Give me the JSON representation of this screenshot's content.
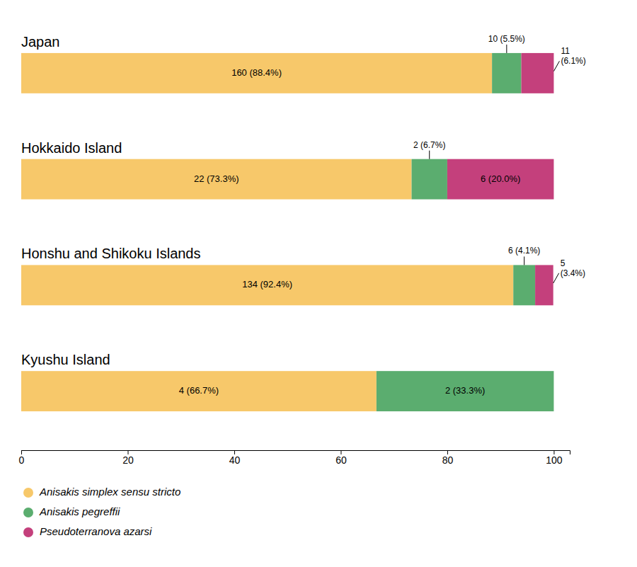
{
  "chart_data": {
    "type": "bar",
    "orientation": "horizontal",
    "stacked": true,
    "data_labels": true,
    "legend": "bottom",
    "tick_labels": "x",
    "categories": [
      "Japan",
      "Hokkaido Island",
      "Honshu and Shikoku Islands",
      "Kyushu Island"
    ],
    "series": [
      {
        "name": "Anisakis simplex sensu stricto",
        "color": "#F7C86A",
        "values": [
          88.4,
          73.3,
          92.4,
          66.7
        ],
        "value_labels": [
          "160 (88.4%)",
          "22 (73.3%)",
          "134 (92.4%)",
          "4 (66.7%)"
        ]
      },
      {
        "name": "Anisakis pegreffii",
        "color": "#5BAD6F",
        "values": [
          5.5,
          6.7,
          4.1,
          33.3
        ],
        "value_labels": [
          "10 (5.5%)",
          "2 (6.7%)",
          "6 (4.1%)",
          "2 (33.3%)"
        ]
      },
      {
        "name": "Pseudoterranova azarsi",
        "color": "#C4407C",
        "values": [
          6.1,
          20.0,
          3.4,
          0.0
        ],
        "value_labels": [
          "11\n(6.1%)",
          "6 (20.0%)",
          "5\n(3.4%)",
          null
        ]
      }
    ],
    "xlim": [
      0,
      103
    ],
    "xticks": [
      0,
      20,
      40,
      60,
      80,
      100
    ]
  }
}
